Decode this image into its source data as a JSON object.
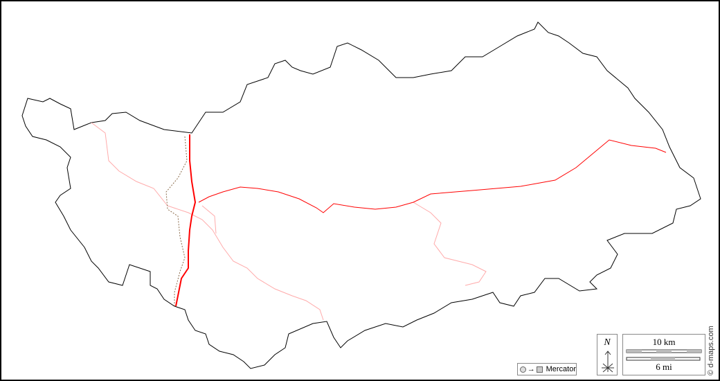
{
  "map": {
    "projection_label": "Mercator",
    "north_label": "N",
    "scale_km_label": "10 km",
    "scale_mi_label": "6 mi",
    "credit": "© d-maps.com",
    "colors": {
      "border": "#000000",
      "main_river": "#ff0000",
      "minor_river": "#ffaaaa",
      "boundary_dashed": "#8a6a4a"
    }
  }
}
